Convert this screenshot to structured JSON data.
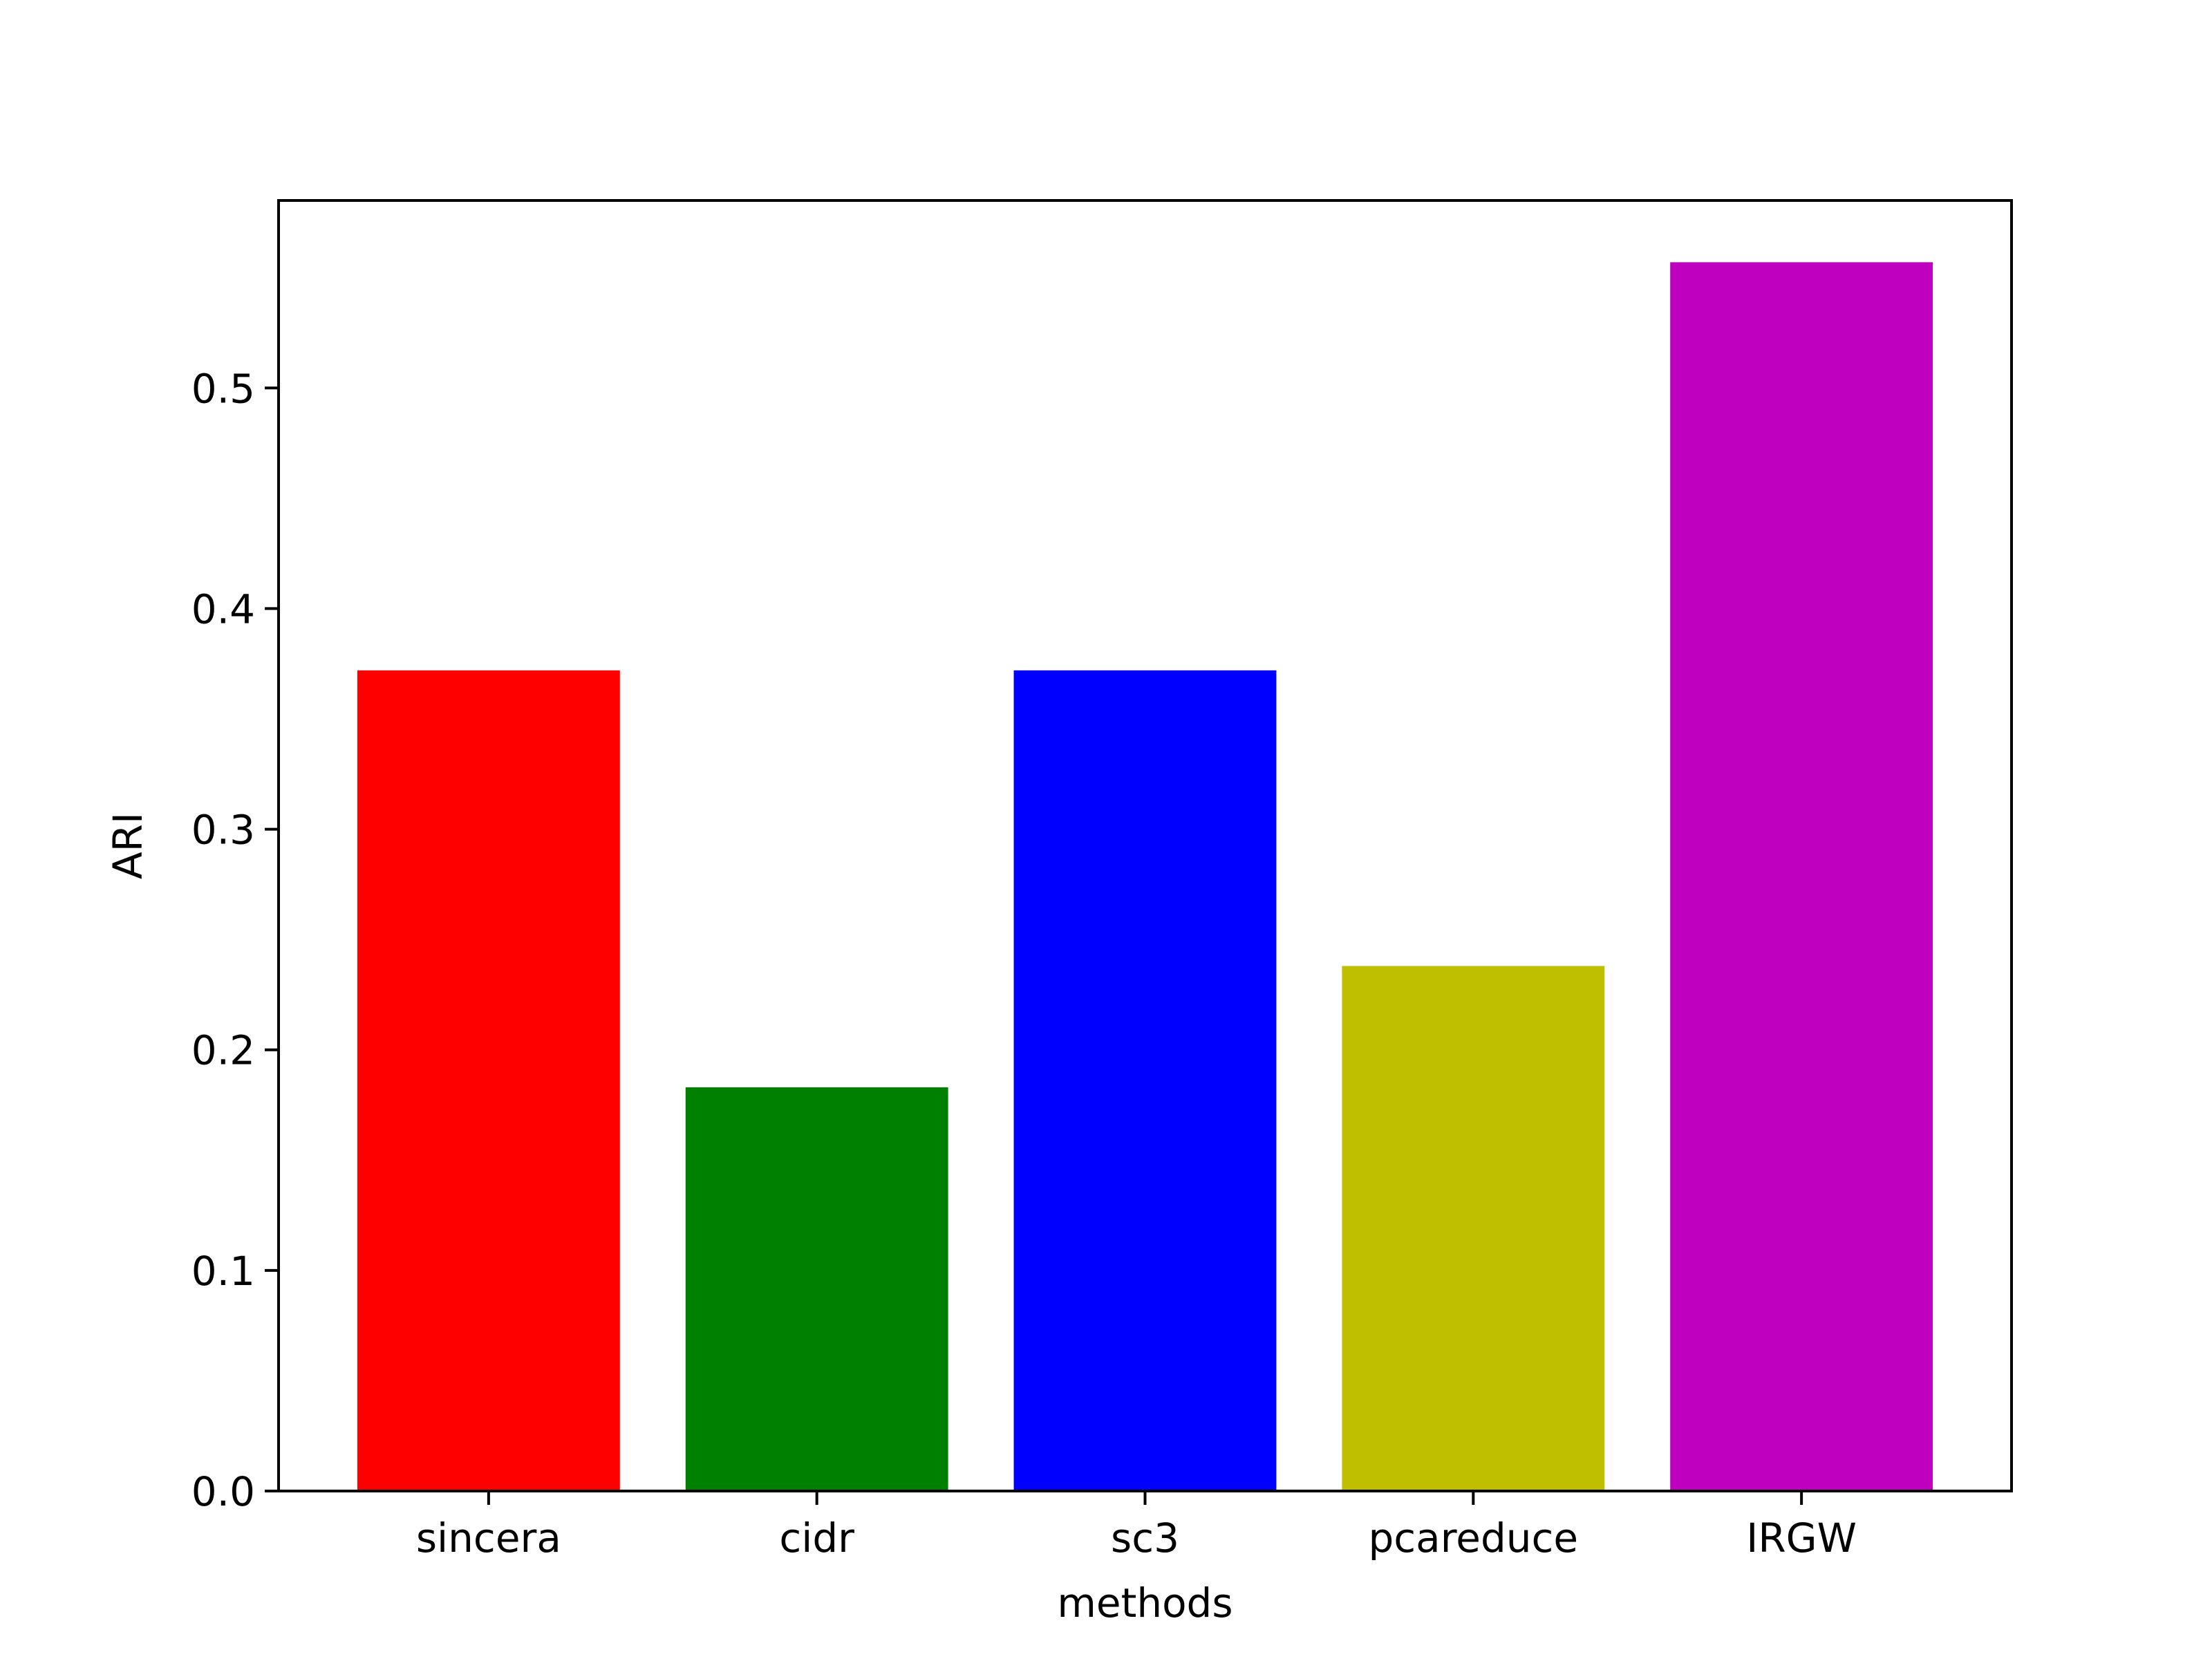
{
  "chart_data": {
    "type": "bar",
    "title": "",
    "xlabel": "methods",
    "ylabel": "ARI",
    "categories": [
      "sincera",
      "cidr",
      "sc3",
      "pcareduce",
      "IRGW"
    ],
    "values": [
      0.372,
      0.183,
      0.372,
      0.238,
      0.557
    ],
    "colors": [
      "#ff0000",
      "#008000",
      "#0000ff",
      "#bfbf00",
      "#bf00bf"
    ],
    "ylim": [
      0,
      0.585
    ],
    "yticks": [
      0.0,
      0.1,
      0.2,
      0.3,
      0.4,
      0.5
    ],
    "ytick_labels": [
      "0.0",
      "0.1",
      "0.2",
      "0.3",
      "0.4",
      "0.5"
    ],
    "grid": false,
    "legend": "none"
  }
}
